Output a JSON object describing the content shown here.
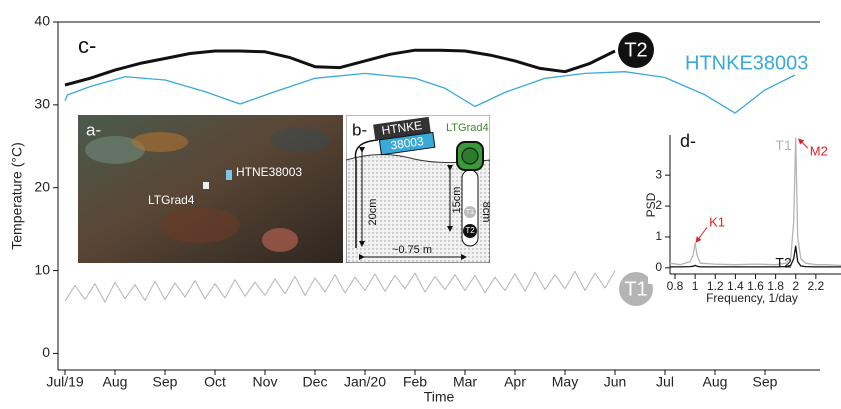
{
  "chart_data": [
    {
      "type": "line",
      "panel_label": "c-",
      "xlabel": "Time",
      "ylabel": "Temperature (°C)",
      "xlim": [
        -0.14,
        15.1
      ],
      "ylim": [
        -2,
        40
      ],
      "xticks": [
        {
          "value": 0,
          "label": "Jul/19"
        },
        {
          "value": 1,
          "label": "Aug"
        },
        {
          "value": 2,
          "label": "Sep"
        },
        {
          "value": 3,
          "label": "Oct"
        },
        {
          "value": 4,
          "label": "Nov"
        },
        {
          "value": 5,
          "label": "Dec"
        },
        {
          "value": 6,
          "label": "Jan/20"
        },
        {
          "value": 7,
          "label": "Feb"
        },
        {
          "value": 8,
          "label": "Mar"
        },
        {
          "value": 9,
          "label": "Apr"
        },
        {
          "value": 10,
          "label": "May"
        },
        {
          "value": 11,
          "label": "Jun"
        },
        {
          "value": 12,
          "label": "Jul"
        },
        {
          "value": 13,
          "label": "Aug"
        },
        {
          "value": 14,
          "label": "Sep"
        }
      ],
      "yticks": [
        0,
        10,
        20,
        30,
        40
      ],
      "series": [
        {
          "name": "T2",
          "color": "#111111",
          "x": [
            0,
            0.5,
            1,
            1.5,
            2,
            2.5,
            3,
            3.5,
            4,
            4.5,
            5,
            5.5,
            6,
            6.5,
            7,
            7.5,
            8,
            8.5,
            9,
            9.5,
            10,
            10.5,
            11
          ],
          "values": [
            32.4,
            33.2,
            34.2,
            35,
            35.6,
            36.2,
            36.5,
            36.5,
            36.4,
            35.7,
            34.6,
            34.5,
            35.3,
            36.1,
            36.6,
            36.6,
            36.5,
            36,
            35.3,
            34.4,
            34,
            35,
            36.5
          ]
        },
        {
          "name": "HTNKE38003",
          "color": "#3aa9d9",
          "x": [
            0,
            0.05,
            0.5,
            1.2,
            2,
            2.8,
            3.5,
            4.2,
            5,
            6,
            7,
            7.6,
            8.2,
            8.8,
            9.6,
            10.4,
            11.2,
            12,
            12.8,
            13.4,
            14,
            14.6
          ],
          "values": [
            30.5,
            31.2,
            32.2,
            33.4,
            33,
            31.6,
            30.1,
            31.6,
            33.2,
            33.8,
            33.2,
            32,
            29.8,
            31.5,
            33.2,
            33.8,
            34,
            33.3,
            31.2,
            29,
            31.8,
            33.6
          ]
        },
        {
          "name": "T1",
          "color": "#b4b4b4",
          "x": [
            0,
            0.2,
            0.4,
            0.6,
            0.8,
            1,
            1.2,
            1.4,
            1.6,
            1.8,
            2,
            2.2,
            2.4,
            2.6,
            2.8,
            3,
            3.2,
            3.4,
            3.6,
            3.8,
            4,
            4.2,
            4.4,
            4.6,
            4.8,
            5,
            5.2,
            5.4,
            5.6,
            5.8,
            6,
            6.2,
            6.4,
            6.6,
            6.8,
            7,
            7.2,
            7.4,
            7.6,
            7.8,
            8,
            8.2,
            8.4,
            8.6,
            8.8,
            9,
            9.2,
            9.4,
            9.6,
            9.8,
            10,
            10.2,
            10.4,
            10.6,
            10.8,
            11
          ],
          "values": [
            6.3,
            8.2,
            6.5,
            8.4,
            6.2,
            8.6,
            6.6,
            8.3,
            6.4,
            8.7,
            6.5,
            8.5,
            6.8,
            8.8,
            6.6,
            8.4,
            6.7,
            8.9,
            6.9,
            8.6,
            7.0,
            9.0,
            7.2,
            9.3,
            7.0,
            9.1,
            7.4,
            9.5,
            7.3,
            9.2,
            7.6,
            9.6,
            7.5,
            9.4,
            7.8,
            9.7,
            7.4,
            9.3,
            7.7,
            9.5,
            7.6,
            9.4,
            7.3,
            9.2,
            7.6,
            9.6,
            7.5,
            9.8,
            7.7,
            9.5,
            7.8,
            9.9,
            7.6,
            9.7,
            7.9,
            10.0
          ]
        }
      ]
    },
    {
      "type": "line",
      "panel_label": "d-",
      "xlabel": "Frequency, 1/day",
      "ylabel": "PSD",
      "xlim": [
        0.75,
        2.45
      ],
      "ylim": [
        -0.2,
        4.3
      ],
      "xticks": [
        0.8,
        1,
        1.2,
        1.4,
        1.6,
        1.8,
        2,
        2.2
      ],
      "yticks": [
        0,
        1,
        2,
        3
      ],
      "series": [
        {
          "name": "T1",
          "color": "#b4b4b4",
          "x": [
            0.75,
            0.85,
            0.95,
            0.98,
            1.0,
            1.02,
            1.05,
            1.2,
            1.4,
            1.6,
            1.8,
            1.9,
            1.95,
            1.98,
            2.0,
            2.02,
            2.05,
            2.1,
            2.2,
            2.3,
            2.45
          ],
          "values": [
            0.15,
            0.1,
            0.2,
            0.4,
            0.8,
            0.4,
            0.15,
            0.12,
            0.1,
            0.12,
            0.1,
            0.15,
            0.3,
            1.5,
            4.2,
            1.0,
            0.3,
            0.15,
            0.1,
            0.1,
            0.08
          ]
        },
        {
          "name": "T2",
          "color": "#111111",
          "x": [
            0.75,
            0.85,
            0.95,
            0.98,
            1.0,
            1.02,
            1.05,
            1.2,
            1.4,
            1.6,
            1.8,
            1.9,
            1.95,
            1.98,
            2.0,
            2.02,
            2.05,
            2.1,
            2.2,
            2.3,
            2.45
          ],
          "values": [
            0.03,
            0.03,
            0.04,
            0.05,
            0.08,
            0.05,
            0.03,
            0.03,
            0.03,
            0.03,
            0.03,
            0.04,
            0.08,
            0.3,
            0.7,
            0.2,
            0.06,
            0.04,
            0.03,
            0.03,
            0.03
          ]
        }
      ],
      "annotation_color": "#e02020",
      "annotations": [
        {
          "text": "K1",
          "x": 1.0,
          "y": 0.8
        },
        {
          "text": "M2",
          "x": 2.02,
          "y": 4.2
        }
      ]
    }
  ],
  "photo": {
    "panel_label": "a-",
    "labels": [
      "HTNE38003",
      "LTGrad4"
    ]
  },
  "diagram": {
    "panel_label": "b-",
    "sensor": [
      "HTNKE",
      "38003"
    ],
    "probe": "LTGrad4",
    "dimensions": [
      "20cm",
      "15cm",
      "8cm",
      "~0.75 m"
    ],
    "sensors": [
      "T1",
      "T2"
    ]
  }
}
